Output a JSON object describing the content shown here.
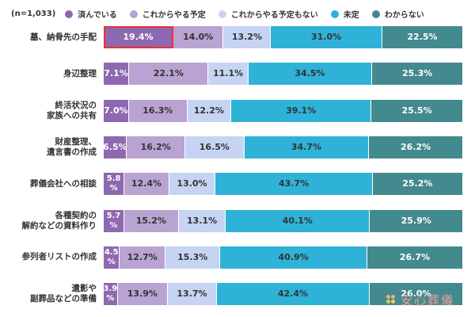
{
  "chart_data": {
    "type": "bar",
    "stacked": true,
    "orientation": "horizontal",
    "note": "(n=1,033)",
    "legend_position": "top",
    "categories": [
      "墓、納骨先の手配",
      "身辺整理",
      "終活状況の\n家族への共有",
      "財産整理、\n遺言書の作成",
      "葬儀会社への相談",
      "各種契約の\n解約などの資料作り",
      "参列者リストの作成",
      "遺影や\n副葬品などの準備"
    ],
    "series": [
      {
        "name": "済んでいる",
        "color": "#8e68b0",
        "text": "#ffffff",
        "values": [
          19.4,
          7.1,
          7.0,
          6.5,
          5.8,
          5.7,
          4.5,
          3.9
        ]
      },
      {
        "name": "これからやる予定",
        "color": "#b9a3d2",
        "text": "#333333",
        "values": [
          14.0,
          22.1,
          16.3,
          16.2,
          12.4,
          15.2,
          12.7,
          13.9
        ]
      },
      {
        "name": "これからやる予定もない",
        "color": "#c6d4f4",
        "text": "#333333",
        "values": [
          13.2,
          11.1,
          12.2,
          16.5,
          13.0,
          13.1,
          15.3,
          13.7
        ]
      },
      {
        "name": "未定",
        "color": "#2fb2d8",
        "text": "#333333",
        "values": [
          31.0,
          34.5,
          39.1,
          34.7,
          43.7,
          40.1,
          40.9,
          42.4
        ]
      },
      {
        "name": "わからない",
        "color": "#438a8e",
        "text": "#ffffff",
        "values": [
          22.5,
          25.3,
          25.5,
          26.2,
          25.2,
          25.9,
          26.7,
          26.0
        ]
      }
    ],
    "highlight": {
      "row": 0,
      "series": 0,
      "color": "#e8323a"
    },
    "xlim": [
      0,
      100
    ]
  },
  "logo": "安心葬儀"
}
